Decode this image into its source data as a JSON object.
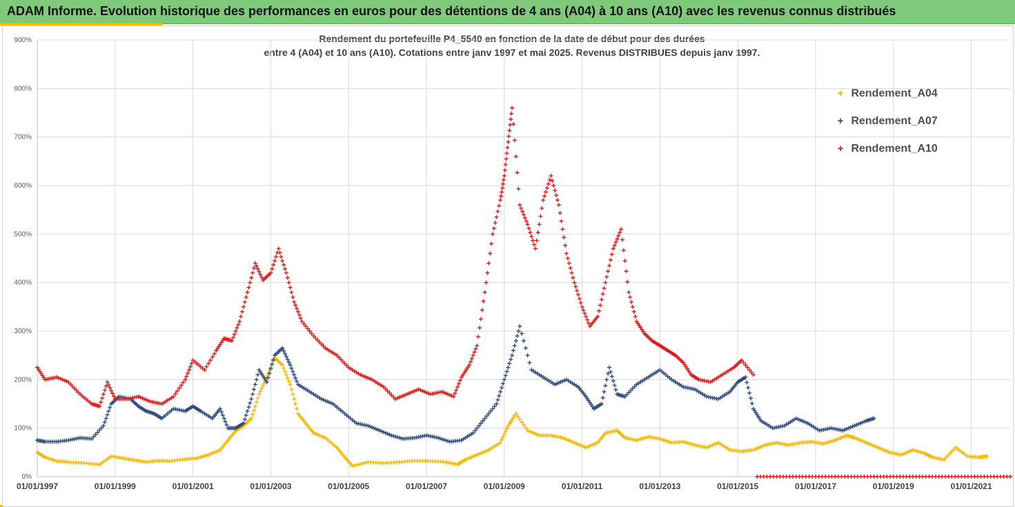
{
  "banner": {
    "title": "ADAM Informe. Evolution historique des performances en euros pour des détentions de 4 ans (A04) à 10 ans (A10) avec les revenus connus distribués"
  },
  "colors": {
    "banner": "#7ec97a",
    "accent": "#f5c400"
  },
  "chart_data": {
    "type": "scatter",
    "title_line1": "Rendement du portefeuille P4_5540 en fonction de la date de début pour des durées",
    "title_line2": "entre 4 (A04) et 10 ans (A10). Cotations entre janv 1997 et mai 2025. Revenus DISTRIBUES depuis janv 1997.",
    "xlabel": "",
    "ylabel": "",
    "xlim": [
      1997.0,
      2022.0
    ],
    "ylim": [
      0,
      900
    ],
    "grid": true,
    "legend_position": "right",
    "y_ticks": [
      "0%",
      "100%",
      "200%",
      "300%",
      "400%",
      "500%",
      "600%",
      "700%",
      "800%",
      "900%"
    ],
    "x_ticks": [
      {
        "x": 1997,
        "label": "01/01/1997"
      },
      {
        "x": 1999,
        "label": "01/01/1999"
      },
      {
        "x": 2001,
        "label": "01/01/2001"
      },
      {
        "x": 2003,
        "label": "01/01/2003"
      },
      {
        "x": 2005,
        "label": "01/01/2005"
      },
      {
        "x": 2007,
        "label": "01/01/2007"
      },
      {
        "x": 2009,
        "label": "01/01/2009"
      },
      {
        "x": 2011,
        "label": "01/01/2011"
      },
      {
        "x": 2013,
        "label": "01/01/2013"
      },
      {
        "x": 2015,
        "label": "01/01/2015"
      },
      {
        "x": 2017,
        "label": "01/01/2017"
      },
      {
        "x": 2019,
        "label": "01/01/2019"
      },
      {
        "x": 2021,
        "label": "01/01/2021"
      }
    ],
    "series": [
      {
        "name": "Rendement_A04",
        "color": "#f5b800",
        "x": [
          1997.0,
          1997.2,
          1997.5,
          1997.8,
          1998.2,
          1998.6,
          1998.9,
          1999.2,
          1999.5,
          1999.8,
          2000.1,
          2000.4,
          2000.8,
          2001.1,
          2001.4,
          2001.7,
          2001.9,
          2002.1,
          2002.3,
          2002.5,
          2002.7,
          2002.9,
          2003.1,
          2003.3,
          2003.5,
          2003.7,
          2003.9,
          2004.1,
          2004.4,
          2004.7,
          2004.9,
          2005.1,
          2005.5,
          2005.9,
          2006.3,
          2006.7,
          2007.1,
          2007.5,
          2007.8,
          2008.0,
          2008.3,
          2008.6,
          2008.9,
          2009.1,
          2009.3,
          2009.6,
          2009.9,
          2010.2,
          2010.5,
          2010.8,
          2011.1,
          2011.4,
          2011.6,
          2011.9,
          2012.1,
          2012.4,
          2012.7,
          2013.0,
          2013.3,
          2013.6,
          2013.9,
          2014.2,
          2014.5,
          2014.8,
          2015.1,
          2015.4,
          2015.7,
          2016.0,
          2016.3,
          2016.6,
          2016.9,
          2017.2,
          2017.5,
          2017.8,
          2018.0,
          2018.3,
          2018.6,
          2018.9,
          2019.2,
          2019.5,
          2019.8,
          2020.0,
          2020.3,
          2020.6,
          2020.9,
          2021.2,
          2021.4
        ],
        "y": [
          50,
          40,
          32,
          30,
          28,
          25,
          42,
          38,
          34,
          30,
          33,
          32,
          36,
          38,
          45,
          55,
          75,
          95,
          105,
          120,
          170,
          205,
          245,
          230,
          190,
          130,
          110,
          90,
          80,
          60,
          40,
          22,
          30,
          28,
          30,
          33,
          32,
          30,
          25,
          35,
          45,
          55,
          70,
          105,
          130,
          95,
          85,
          85,
          80,
          70,
          60,
          70,
          90,
          95,
          80,
          75,
          82,
          78,
          70,
          72,
          65,
          60,
          70,
          55,
          52,
          55,
          65,
          70,
          65,
          70,
          72,
          68,
          75,
          85,
          80,
          70,
          60,
          50,
          45,
          55,
          48,
          40,
          35,
          60,
          42,
          40,
          42
        ]
      },
      {
        "name": "Rendement_A07",
        "color": "#2e4a7a",
        "x": [
          1997.0,
          1997.2,
          1997.5,
          1997.8,
          1998.1,
          1998.4,
          1998.7,
          1998.9,
          1999.1,
          1999.4,
          1999.6,
          1999.8,
          2000.0,
          2000.2,
          2000.5,
          2000.8,
          2001.0,
          2001.2,
          2001.5,
          2001.7,
          2001.9,
          2002.1,
          2002.3,
          2002.5,
          2002.7,
          2002.9,
          2003.1,
          2003.3,
          2003.5,
          2003.7,
          2004.0,
          2004.3,
          2004.6,
          2004.9,
          2005.2,
          2005.5,
          2005.8,
          2006.1,
          2006.4,
          2006.7,
          2007.0,
          2007.3,
          2007.6,
          2007.9,
          2008.2,
          2008.5,
          2008.8,
          2009.0,
          2009.2,
          2009.4,
          2009.7,
          2010.0,
          2010.3,
          2010.6,
          2010.9,
          2011.1,
          2011.3,
          2011.5,
          2011.7,
          2011.9,
          2012.1,
          2012.4,
          2012.7,
          2013.0,
          2013.3,
          2013.6,
          2013.9,
          2014.2,
          2014.5,
          2014.8,
          2015.0,
          2015.2,
          2015.4,
          2015.6,
          2015.9,
          2016.2,
          2016.5,
          2016.8,
          2017.1,
          2017.4,
          2017.7,
          2018.0,
          2018.3,
          2018.5
        ],
        "y": [
          75,
          72,
          72,
          75,
          80,
          78,
          105,
          150,
          165,
          160,
          145,
          135,
          130,
          120,
          140,
          135,
          145,
          135,
          120,
          140,
          100,
          100,
          110,
          160,
          220,
          195,
          250,
          265,
          230,
          190,
          175,
          160,
          150,
          130,
          110,
          105,
          95,
          85,
          78,
          80,
          85,
          80,
          72,
          75,
          90,
          120,
          150,
          200,
          250,
          310,
          220,
          205,
          190,
          200,
          185,
          165,
          140,
          150,
          225,
          170,
          165,
          190,
          205,
          220,
          200,
          185,
          180,
          165,
          160,
          175,
          195,
          205,
          140,
          115,
          100,
          105,
          120,
          110,
          95,
          100,
          95,
          105,
          115,
          120
        ]
      },
      {
        "name": "Rendement_A10",
        "color": "#d81c1c",
        "x": [
          1997.0,
          1997.2,
          1997.5,
          1997.8,
          1998.1,
          1998.4,
          1998.6,
          1998.8,
          1999.0,
          1999.3,
          1999.6,
          1999.9,
          2000.2,
          2000.5,
          2000.8,
          2001.0,
          2001.3,
          2001.6,
          2001.8,
          2002.0,
          2002.2,
          2002.4,
          2002.6,
          2002.8,
          2003.0,
          2003.2,
          2003.4,
          2003.6,
          2003.8,
          2004.1,
          2004.4,
          2004.7,
          2005.0,
          2005.3,
          2005.6,
          2005.9,
          2006.2,
          2006.5,
          2006.8,
          2007.1,
          2007.4,
          2007.7,
          2007.9,
          2008.1,
          2008.3,
          2008.5,
          2008.7,
          2008.9,
          2009.0,
          2009.1,
          2009.2,
          2009.4,
          2009.6,
          2009.8,
          2010.0,
          2010.2,
          2010.4,
          2010.6,
          2010.8,
          2011.0,
          2011.2,
          2011.4,
          2011.6,
          2011.8,
          2012.0,
          2012.2,
          2012.4,
          2012.6,
          2012.8,
          2013.0,
          2013.2,
          2013.4,
          2013.6,
          2013.8,
          2014.0,
          2014.3,
          2014.6,
          2014.9,
          2015.1,
          2015.4
        ],
        "y": [
          225,
          200,
          205,
          195,
          170,
          150,
          145,
          195,
          160,
          160,
          165,
          155,
          150,
          165,
          200,
          240,
          220,
          260,
          285,
          280,
          320,
          380,
          440,
          405,
          420,
          470,
          420,
          360,
          320,
          290,
          265,
          250,
          225,
          210,
          200,
          185,
          160,
          170,
          180,
          170,
          175,
          165,
          205,
          230,
          270,
          380,
          500,
          570,
          620,
          690,
          760,
          560,
          520,
          470,
          570,
          620,
          560,
          460,
          400,
          350,
          310,
          330,
          400,
          470,
          510,
          380,
          320,
          295,
          280,
          270,
          260,
          250,
          235,
          210,
          200,
          195,
          210,
          225,
          240,
          210
        ]
      },
      {
        "name": "",
        "color": "#d81c1c",
        "x": [
          2015.5,
          2016.0,
          2016.5,
          2017.0,
          2017.5,
          2018.0,
          2018.5,
          2019.0,
          2019.5,
          2020.0,
          2020.5,
          2021.0,
          2021.5,
          2022.0
        ],
        "y": [
          0,
          0,
          0,
          0,
          0,
          0,
          0,
          0,
          0,
          0,
          0,
          0,
          0,
          0
        ]
      }
    ],
    "legend": [
      "Rendement_A04",
      "Rendement_A07",
      "Rendement_A10"
    ]
  }
}
